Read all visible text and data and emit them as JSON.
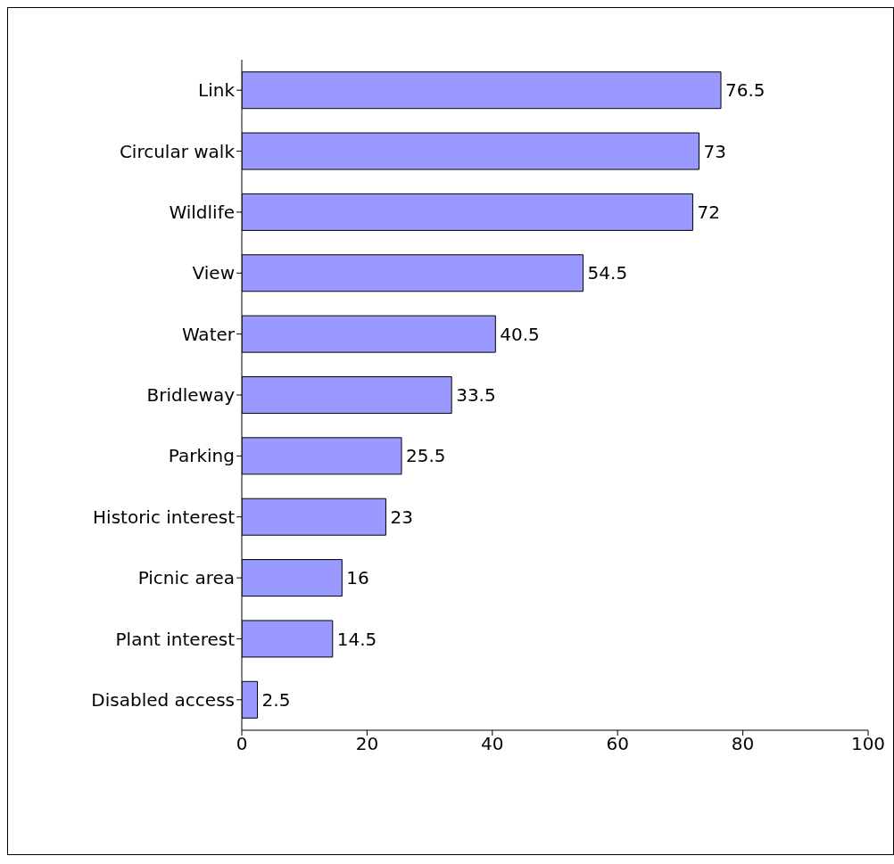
{
  "chart_data": {
    "type": "bar",
    "orientation": "horizontal",
    "categories": [
      "Link",
      "Circular walk",
      "Wildlife",
      "View",
      "Water",
      "Bridleway",
      "Parking",
      "Historic interest",
      "Picnic area",
      "Plant interest",
      "Disabled access"
    ],
    "values": [
      76.5,
      73,
      72,
      54.5,
      40.5,
      33.5,
      25.5,
      23,
      16,
      14.5,
      2.5
    ],
    "color": "#9999ff",
    "xlim": [
      0,
      100
    ],
    "xticks": [
      0,
      20,
      40,
      60,
      80,
      100
    ],
    "data_labels": true,
    "grid": false
  }
}
